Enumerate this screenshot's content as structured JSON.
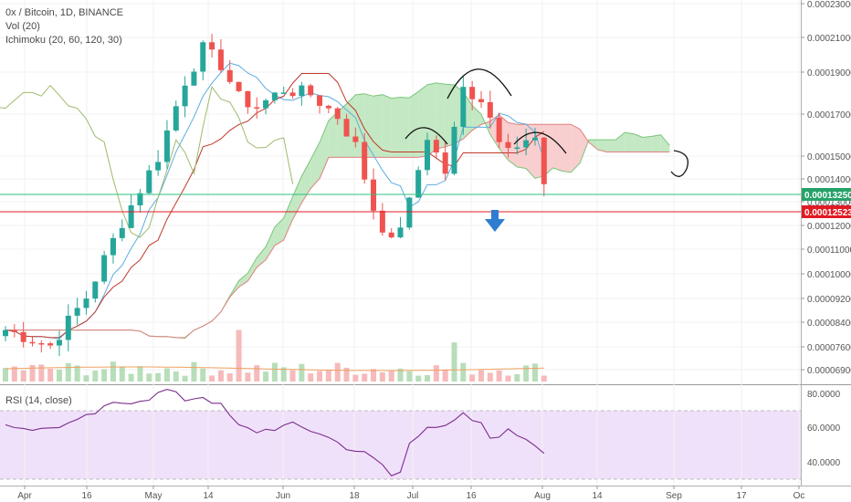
{
  "header": {
    "symbol": "0x / Bitcoin, 1D, BINANCE",
    "volume": "Vol (20)",
    "ichimoku": "Ichimoku (20, 60, 120, 30)"
  },
  "rsi_panel": {
    "title": "RSI (14, close)",
    "axis_labels": [
      "80.0000",
      "60.0000",
      "40.0000"
    ],
    "band": [
      30,
      70
    ]
  },
  "price_axis": {
    "labels": [
      "0.00023000",
      "0.00021000",
      "0.00019000",
      "0.00017000",
      "0.00015000",
      "0.00014000",
      "0.00013000",
      "0.00012000",
      "0.00011000",
      "0.00010000",
      "0.00009200",
      "0.00008400",
      "0.00007600",
      "0.00006900"
    ],
    "badges": [
      {
        "text": "0.00013250",
        "color": "#26a269"
      },
      {
        "text": "0.00012523",
        "color": "#e01b24"
      }
    ]
  },
  "x_axis": {
    "labels": [
      "Apr",
      "16",
      "May",
      "14",
      "Jun",
      "18",
      "Jul",
      "16",
      "Aug",
      "14",
      "Sep",
      "17",
      "Oc"
    ]
  },
  "colors": {
    "up": "#26a69a",
    "down": "#ef5350",
    "cloud_bull": "#b9e4b9",
    "cloud_bear": "#f7c6c6",
    "tenkan": "#5dade2",
    "kijun": "#c0392b",
    "chikou": "#9dbb6c",
    "rsi_line": "#7b2d8e",
    "rsi_band": "#f0e1fa"
  },
  "chart_data": {
    "type": "candlestick",
    "title": "0x / Bitcoin, 1D, BINANCE",
    "x": [
      "Apr",
      "16",
      "May",
      "14",
      "Jun",
      "18",
      "Jul",
      "16",
      "Aug"
    ],
    "y_range": [
      6.6e-05,
      0.000235
    ],
    "close_markers": [
      {
        "label": "0.00013250"
      },
      {
        "label": "0.00012523"
      }
    ],
    "price_path": [
      [
        0,
        7.9e-05
      ],
      [
        5,
        7.5e-05
      ],
      [
        9,
        8.8e-05
      ],
      [
        13,
        0.000113
      ],
      [
        17,
        0.00014
      ],
      [
        20,
        0.00018
      ],
      [
        22,
        0.0002
      ],
      [
        24,
        0.00019
      ],
      [
        26,
        0.00017
      ],
      [
        28,
        0.000165
      ],
      [
        31,
        0.000175
      ],
      [
        34,
        0.000172
      ],
      [
        37,
        0.00016
      ],
      [
        39,
        0.000145
      ],
      [
        41,
        0.000118
      ],
      [
        43,
        0.000105
      ],
      [
        45,
        0.00012
      ],
      [
        47,
        0.00015
      ],
      [
        49,
        0.000133
      ],
      [
        51,
        0.000175
      ],
      [
        53,
        0.00017
      ],
      [
        55,
        0.00015
      ],
      [
        57,
        0.000145
      ],
      [
        59,
        0.000148
      ],
      [
        60,
        0.000125
      ]
    ],
    "rsi": {
      "range": [
        22,
        85
      ],
      "values": [
        [
          0,
          60
        ],
        [
          4,
          57
        ],
        [
          8,
          62
        ],
        [
          12,
          73
        ],
        [
          16,
          77
        ],
        [
          18,
          82
        ],
        [
          20,
          76
        ],
        [
          22,
          78
        ],
        [
          24,
          72
        ],
        [
          26,
          59
        ],
        [
          28,
          56
        ],
        [
          32,
          60
        ],
        [
          35,
          55
        ],
        [
          38,
          46
        ],
        [
          40,
          42
        ],
        [
          42,
          35
        ],
        [
          43,
          28
        ],
        [
          44,
          30
        ],
        [
          45,
          49
        ],
        [
          47,
          60
        ],
        [
          49,
          58
        ],
        [
          51,
          66
        ],
        [
          53,
          60
        ],
        [
          54,
          52
        ],
        [
          56,
          56
        ],
        [
          58,
          52
        ],
        [
          60,
          44
        ]
      ]
    }
  }
}
